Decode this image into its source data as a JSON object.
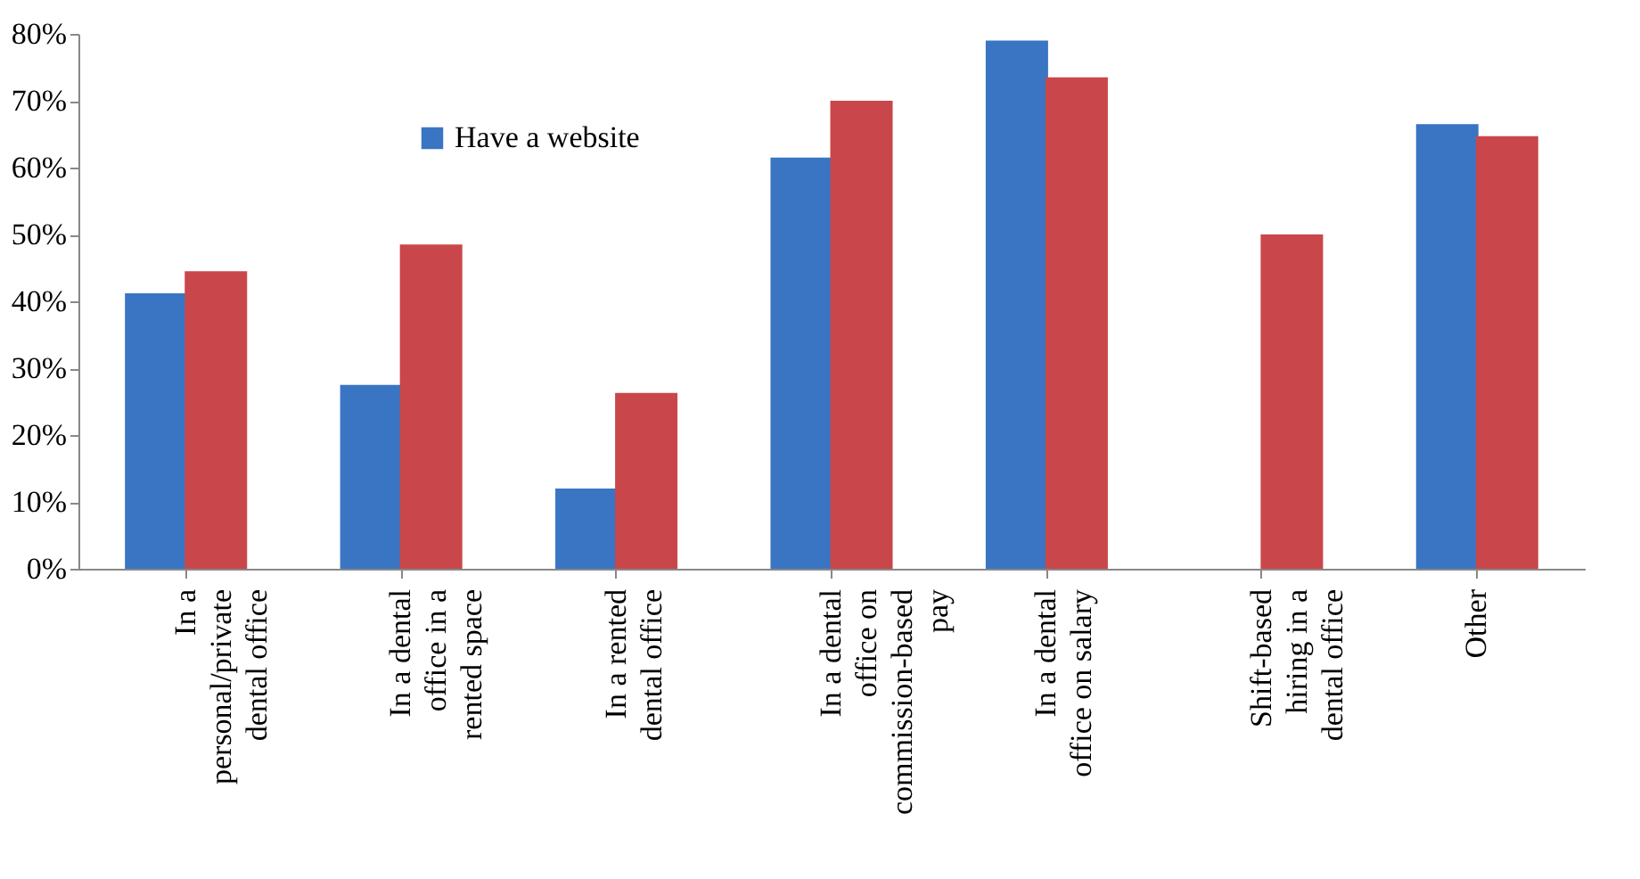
{
  "chart_data": {
    "type": "bar",
    "categories": [
      "In a personal/private dental office",
      "In a dental office in a rented space",
      "In a rented dental office",
      "In a dental office on commission-based pay",
      "In a dental office on salary",
      "Shift-based hiring in a dental office",
      "Other"
    ],
    "series": [
      {
        "name": "Have a website",
        "color": "#3a75c4",
        "values": [
          41.2,
          27.5,
          12,
          61.5,
          79,
          null,
          66.5
        ]
      },
      {
        "color": "#c9474a",
        "values": [
          44.5,
          48.5,
          26.3,
          70,
          73.5,
          50,
          64.7
        ]
      }
    ],
    "ylim": [
      0,
      80
    ],
    "yticks": [
      {
        "value": 0,
        "label": "0%"
      },
      {
        "value": 10,
        "label": "10%"
      },
      {
        "value": 20,
        "label": "20%"
      },
      {
        "value": 30,
        "label": "30%"
      },
      {
        "value": 40,
        "label": "40%"
      },
      {
        "value": 50,
        "label": "50%"
      },
      {
        "value": 60,
        "label": "60%"
      },
      {
        "value": 70,
        "label": "70%"
      },
      {
        "value": 80,
        "label": "80%"
      }
    ],
    "legend": "top left"
  }
}
